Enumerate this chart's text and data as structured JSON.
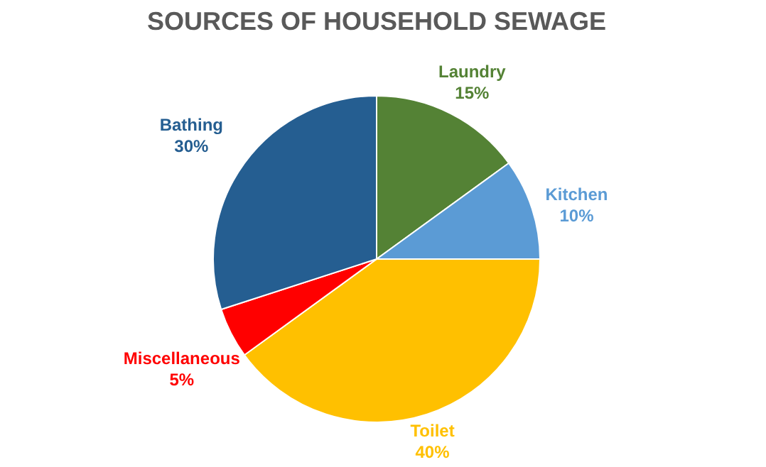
{
  "chart_data": {
    "type": "pie",
    "title": "SOURCES OF HOUSEHOLD SEWAGE",
    "categories": [
      "Laundry",
      "Kitchen",
      "Toilet",
      "Miscellaneous",
      "Bathing"
    ],
    "values": [
      15,
      10,
      40,
      5,
      30
    ],
    "colors": [
      "#548235",
      "#5b9bd5",
      "#ffc000",
      "#ff0000",
      "#255e91"
    ],
    "value_labels": [
      "15%",
      "10%",
      "40%",
      "5%",
      "30%"
    ],
    "legend": false
  }
}
